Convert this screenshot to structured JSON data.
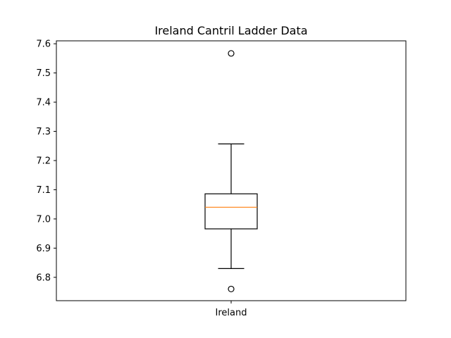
{
  "chart_data": {
    "type": "box",
    "title": "Ireland Cantril Ladder Data",
    "xlabel": "",
    "ylabel": "",
    "categories": [
      "Ireland"
    ],
    "ylim": [
      6.72,
      7.61
    ],
    "yticks": [
      6.8,
      6.9,
      7.0,
      7.1,
      7.2,
      7.3,
      7.4,
      7.5,
      7.6
    ],
    "ytick_labels": [
      "6.8",
      "6.9",
      "7.0",
      "7.1",
      "7.2",
      "7.3",
      "7.4",
      "7.5",
      "7.6"
    ],
    "grid": false,
    "boxes": [
      {
        "category": "Ireland",
        "whisker_low": 6.83,
        "q1": 6.966,
        "median": 7.04,
        "q3": 7.086,
        "whisker_high": 7.257,
        "outliers": [
          6.76,
          7.567
        ]
      }
    ]
  },
  "colors": {
    "box": "#000000",
    "median": "#ff7f0e",
    "axes": "#000000",
    "background": "#ffffff"
  }
}
